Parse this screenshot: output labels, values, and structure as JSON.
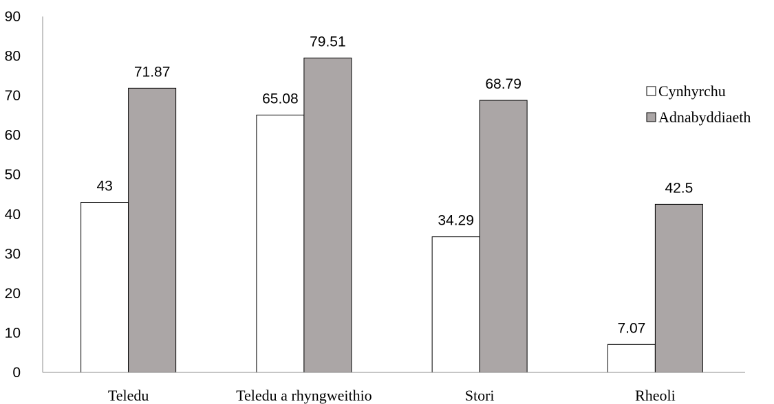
{
  "chart_data": {
    "type": "bar",
    "title": "",
    "xlabel": "",
    "ylabel": "",
    "categories": [
      "Teledu",
      "Teledu a rhyngweithio",
      "Stori",
      "Rheoli"
    ],
    "series": [
      {
        "name": "Cynhyrchu",
        "values": [
          43,
          65.08,
          34.29,
          7.07
        ],
        "labels": [
          "43",
          "65.08",
          "34.29",
          "7.07"
        ],
        "color": "#ffffff"
      },
      {
        "name": "Adnabyddiaeth",
        "values": [
          71.87,
          79.51,
          68.79,
          42.5
        ],
        "labels": [
          "71.87",
          "79.51",
          "68.79",
          "42.5"
        ],
        "color": "#aba6a6"
      }
    ],
    "ylim": [
      0,
      90
    ],
    "yticks": [
      "0",
      "10",
      "20",
      "30",
      "40",
      "50",
      "60",
      "70",
      "80",
      "90"
    ],
    "grid": false,
    "legend": "right"
  }
}
